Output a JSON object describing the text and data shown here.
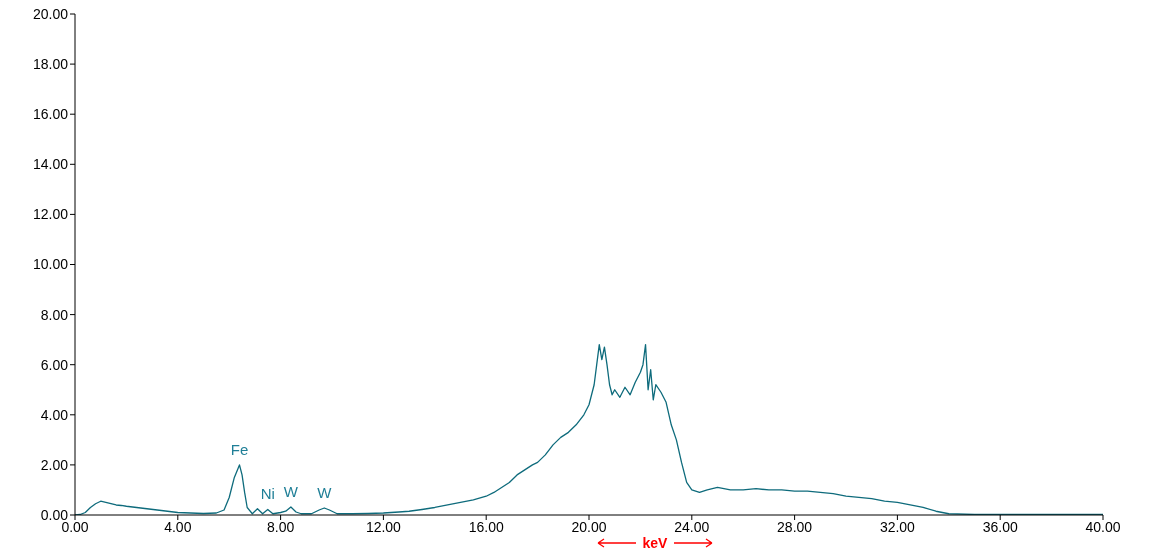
{
  "chart_data": {
    "type": "line",
    "xlabel": "keV",
    "x": [
      0,
      0.2,
      0.4,
      0.6,
      0.8,
      1.0,
      1.2,
      1.4,
      1.6,
      1.8,
      2.0,
      2.4,
      2.8,
      3.2,
      3.6,
      4.0,
      4.5,
      5.0,
      5.5,
      5.8,
      6.0,
      6.2,
      6.4,
      6.5,
      6.6,
      6.7,
      6.9,
      7.1,
      7.3,
      7.5,
      7.7,
      8.0,
      8.2,
      8.4,
      8.6,
      8.8,
      9.2,
      9.5,
      9.7,
      9.9,
      10.2,
      10.8,
      11.4,
      12.0,
      12.6,
      13.0,
      13.5,
      14.0,
      14.5,
      15.0,
      15.5,
      16.0,
      16.3,
      16.6,
      16.9,
      17.2,
      17.5,
      17.8,
      18.0,
      18.3,
      18.6,
      18.9,
      19.2,
      19.5,
      19.8,
      20.0,
      20.2,
      20.3,
      20.4,
      20.5,
      20.6,
      20.7,
      20.8,
      20.9,
      21.0,
      21.2,
      21.4,
      21.6,
      21.8,
      22.0,
      22.1,
      22.2,
      22.3,
      22.4,
      22.5,
      22.6,
      22.8,
      23.0,
      23.2,
      23.4,
      23.6,
      23.8,
      24.0,
      24.3,
      24.6,
      25.0,
      25.5,
      26.0,
      26.5,
      27.0,
      27.5,
      28.0,
      28.5,
      29.0,
      29.5,
      30.0,
      30.5,
      31.0,
      31.5,
      32.0,
      32.5,
      33.0,
      33.5,
      34.0,
      35.0,
      36.0,
      38.0,
      40.0
    ],
    "series": [
      {
        "color": "#0e6b7c",
        "values": [
          0,
          0.02,
          0.1,
          0.3,
          0.45,
          0.55,
          0.5,
          0.45,
          0.4,
          0.38,
          0.35,
          0.3,
          0.25,
          0.2,
          0.15,
          0.1,
          0.08,
          0.06,
          0.08,
          0.2,
          0.7,
          1.5,
          2.0,
          1.6,
          0.9,
          0.3,
          0.05,
          0.25,
          0.05,
          0.22,
          0.05,
          0.1,
          0.15,
          0.32,
          0.12,
          0.05,
          0.05,
          0.2,
          0.28,
          0.2,
          0.05,
          0.05,
          0.06,
          0.08,
          0.12,
          0.15,
          0.22,
          0.3,
          0.4,
          0.5,
          0.6,
          0.75,
          0.9,
          1.1,
          1.3,
          1.6,
          1.8,
          2.0,
          2.1,
          2.4,
          2.8,
          3.1,
          3.3,
          3.6,
          4.0,
          4.4,
          5.2,
          6.0,
          6.8,
          6.2,
          6.7,
          6.0,
          5.2,
          4.8,
          5.0,
          4.7,
          5.1,
          4.8,
          5.3,
          5.7,
          6.0,
          6.8,
          5.0,
          5.8,
          4.6,
          5.2,
          4.9,
          4.5,
          3.6,
          3.0,
          2.1,
          1.3,
          1.0,
          0.9,
          1.0,
          1.1,
          1.0,
          1.0,
          1.05,
          1.0,
          1.0,
          0.95,
          0.95,
          0.9,
          0.85,
          0.75,
          0.7,
          0.65,
          0.55,
          0.5,
          0.4,
          0.3,
          0.15,
          0.05,
          0.02,
          0.02,
          0.02,
          0.02
        ]
      }
    ],
    "xlim": [
      0,
      40
    ],
    "xticks": [
      {
        "value": 0,
        "label": "0.00"
      },
      {
        "value": 4,
        "label": "4.00"
      },
      {
        "value": 8,
        "label": "8.00"
      },
      {
        "value": 12,
        "label": "12.00"
      },
      {
        "value": 16,
        "label": "16.00"
      },
      {
        "value": 20,
        "label": "20.00"
      },
      {
        "value": 24,
        "label": "24.00"
      },
      {
        "value": 28,
        "label": "28.00"
      },
      {
        "value": 32,
        "label": "32.00"
      },
      {
        "value": 36,
        "label": "36.00"
      },
      {
        "value": 40,
        "label": "40.00"
      }
    ],
    "ylim": [
      0,
      20
    ],
    "yticks": [
      {
        "value": 0,
        "label": "0.00"
      },
      {
        "value": 2,
        "label": "2.00"
      },
      {
        "value": 4,
        "label": "4.00"
      },
      {
        "value": 6,
        "label": "6.00"
      },
      {
        "value": 8,
        "label": "8.00"
      },
      {
        "value": 10,
        "label": "10.00"
      },
      {
        "value": 12,
        "label": "12.00"
      },
      {
        "value": 14,
        "label": "14.00"
      },
      {
        "value": 16,
        "label": "16.00"
      },
      {
        "value": 18,
        "label": "18.00"
      },
      {
        "value": 20,
        "label": "20.00"
      }
    ],
    "annotations": [
      {
        "text": "Fe",
        "x": 6.4,
        "y": 2.0
      },
      {
        "text": "Ni",
        "x": 7.5,
        "y": 0.22
      },
      {
        "text": "W",
        "x": 8.4,
        "y": 0.32
      },
      {
        "text": "W",
        "x": 9.7,
        "y": 0.28
      }
    ],
    "grid": false,
    "legend": false,
    "marker": "none",
    "line_style": "solid"
  }
}
